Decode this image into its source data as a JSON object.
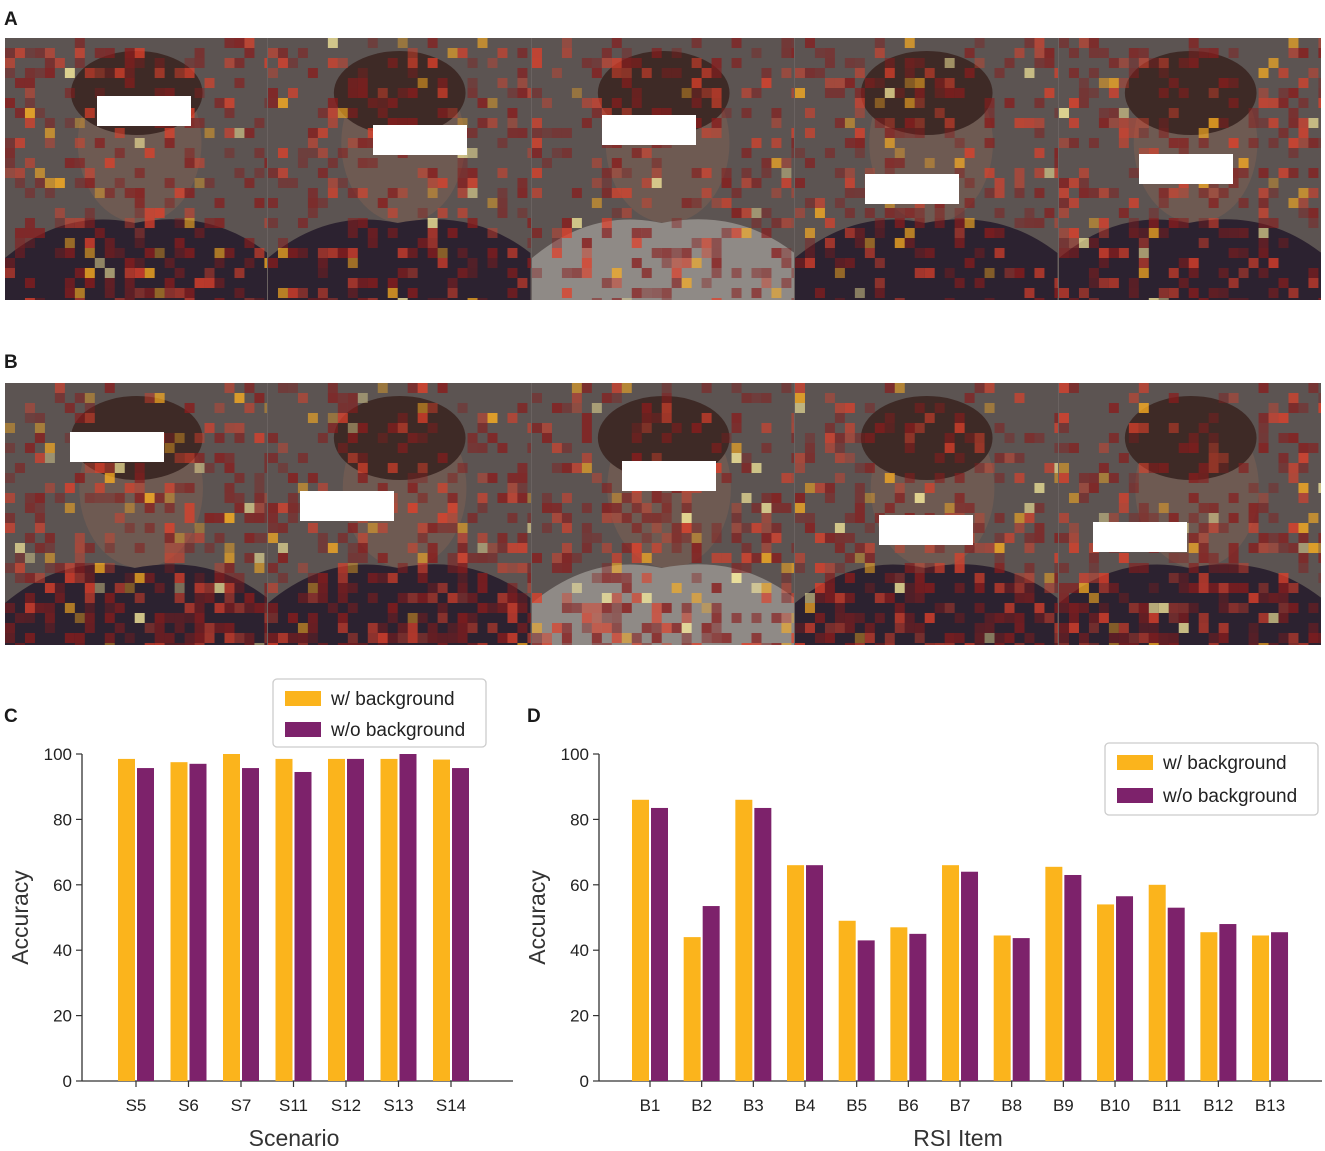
{
  "panels": {
    "a": "A",
    "b": "B",
    "c": "C",
    "d": "D"
  },
  "colors": {
    "with_background": "#fbb41c",
    "without_background": "#7d226b"
  },
  "chart_data": [
    {
      "type": "bar",
      "panel": "C",
      "title": "",
      "xlabel": "Scenario",
      "ylabel": "Accuracy",
      "ylim": [
        0,
        100
      ],
      "yticks": [
        0,
        20,
        40,
        60,
        80,
        100
      ],
      "categories": [
        "S5",
        "S6",
        "S7",
        "S11",
        "S12",
        "S13",
        "S14"
      ],
      "series": [
        {
          "name": "w/ background",
          "values": [
            98.5,
            97.5,
            100,
            98.5,
            98.5,
            98.5,
            98.3
          ]
        },
        {
          "name": "w/o background",
          "values": [
            95.7,
            97,
            95.7,
            94.5,
            98.5,
            100,
            95.7
          ]
        }
      ],
      "legend": "top-right",
      "grid": false
    },
    {
      "type": "bar",
      "panel": "D",
      "title": "",
      "xlabel": "RSI Item",
      "ylabel": "Accuracy",
      "ylim": [
        0,
        100
      ],
      "yticks": [
        0,
        20,
        40,
        60,
        80,
        100
      ],
      "categories": [
        "B1",
        "B2",
        "B3",
        "B4",
        "B5",
        "B6",
        "B7",
        "B8",
        "B9",
        "B10",
        "B11",
        "B12",
        "B13"
      ],
      "series": [
        {
          "name": "w/ background",
          "values": [
            86,
            44,
            86,
            66,
            49,
            47,
            66,
            44.5,
            65.5,
            54,
            60,
            45.5,
            44.5
          ]
        },
        {
          "name": "w/o background",
          "values": [
            83.5,
            53.5,
            83.5,
            66,
            43,
            45,
            64,
            43.7,
            63,
            56.5,
            53,
            48,
            45.5
          ]
        }
      ],
      "legend": "top-right",
      "grid": false
    }
  ]
}
